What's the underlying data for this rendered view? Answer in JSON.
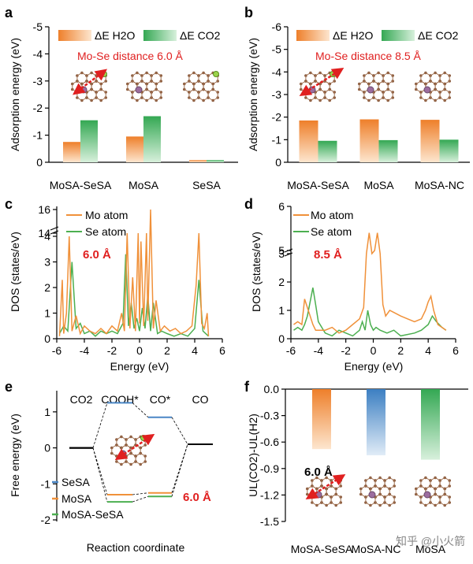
{
  "colors": {
    "orange": "#f0913a",
    "green": "#4caf50",
    "blue": "#4a86c5",
    "red": "#e02020",
    "ink": "#000000"
  },
  "labels": {
    "dE_H2O": "ΔE H2O",
    "dE_CO2": "ΔE CO2",
    "mo_atom": "Mo atom",
    "se_atom": "Se atom",
    "watermark": "知乎 @小火箭"
  },
  "chart_data": [
    {
      "panel": "a",
      "type": "bar",
      "title": "",
      "ylabel": "Adsorption energy (eV)",
      "ylim": [
        -5,
        0
      ],
      "yticks": [
        "-5",
        "-4",
        "-3",
        "-2",
        "-1",
        "0"
      ],
      "categories": [
        "MoSA-SeSA",
        "MoSA",
        "SeSA"
      ],
      "annotation": "Mo-Se distance 6.0 Å",
      "series": [
        {
          "name": "ΔE H2O",
          "values": [
            -0.75,
            -0.95,
            -0.08
          ]
        },
        {
          "name": "ΔE CO2",
          "values": [
            -1.55,
            -1.7,
            -0.08
          ]
        }
      ]
    },
    {
      "panel": "b",
      "type": "bar",
      "ylabel": "Adsorption energy (eV)",
      "ylim": [
        -6,
        0
      ],
      "yticks": [
        "-6",
        "-5",
        "-4",
        "-3",
        "-2",
        "-1",
        "0"
      ],
      "categories": [
        "MoSA-SeSA",
        "MoSA",
        "MoSA-NC"
      ],
      "annotation": "Mo-Se distance 8.5 Å",
      "series": [
        {
          "name": "ΔE H2O",
          "values": [
            -1.85,
            -1.9,
            -1.88
          ]
        },
        {
          "name": "ΔE CO2",
          "values": [
            -0.95,
            -0.98,
            -1.0
          ]
        }
      ]
    },
    {
      "panel": "c",
      "type": "line",
      "xlabel": "Energy (eV)",
      "ylabel": "DOS (states/eV)",
      "xlim": [
        -6,
        6
      ],
      "xticks": [
        "-6",
        "-4",
        "-2",
        "0",
        "2",
        "4",
        "6"
      ],
      "yticks": [
        "0",
        "1",
        "2",
        "3",
        "4",
        "14",
        "16"
      ],
      "annotation": "6.0 Å",
      "series": [
        {
          "name": "Mo atom",
          "x": [
            -5.8,
            -5.6,
            -5.5,
            -5.3,
            -5.1,
            -4.9,
            -4.6,
            -4.3,
            -4.0,
            -3.6,
            -3.2,
            -2.8,
            -2.4,
            -2.0,
            -1.6,
            -1.3,
            -1.1,
            -0.9,
            -0.7,
            -0.5,
            -0.3,
            -0.1,
            0.0,
            0.1,
            0.3,
            0.5,
            0.6,
            0.8,
            1.0,
            1.2,
            1.5,
            1.8,
            2.2,
            2.6,
            3.0,
            3.4,
            3.8,
            4.1,
            4.3,
            4.5,
            4.7,
            4.9,
            5.0
          ],
          "y": [
            0.1,
            2.3,
            0.2,
            1.0,
            4.0,
            0.3,
            0.9,
            0.2,
            0.5,
            0.3,
            0.2,
            0.4,
            0.2,
            0.5,
            0.3,
            1.0,
            0.3,
            4.3,
            0.4,
            2.4,
            0.3,
            4.1,
            0.6,
            3.8,
            0.5,
            4.2,
            0.7,
            16.5,
            0.4,
            1.5,
            0.3,
            0.5,
            0.3,
            0.4,
            0.2,
            0.3,
            0.5,
            2.1,
            4.3,
            0.6,
            0.4,
            1.0,
            0.1
          ]
        },
        {
          "name": "Se atom",
          "x": [
            -5.8,
            -5.5,
            -5.2,
            -4.9,
            -4.6,
            -4.3,
            -4.0,
            -3.6,
            -3.2,
            -2.8,
            -2.4,
            -2.0,
            -1.6,
            -1.2,
            -1.0,
            -0.8,
            -0.6,
            -0.4,
            -0.2,
            0.0,
            0.2,
            0.4,
            0.6,
            0.8,
            1.0,
            1.3,
            1.6,
            2.0,
            2.5,
            3.0,
            3.5,
            4.0,
            4.3,
            4.6,
            5.0
          ],
          "y": [
            0.2,
            0.5,
            0.3,
            3.0,
            0.4,
            0.6,
            0.2,
            0.3,
            0.1,
            0.3,
            0.2,
            0.3,
            0.2,
            0.6,
            3.3,
            0.5,
            1.4,
            0.4,
            0.8,
            0.3,
            1.2,
            0.4,
            1.7,
            0.3,
            1.4,
            0.2,
            0.3,
            0.2,
            0.1,
            0.2,
            0.1,
            0.4,
            2.3,
            0.3,
            0.1
          ]
        }
      ]
    },
    {
      "panel": "d",
      "type": "line",
      "xlabel": "Energy (eV)",
      "ylabel": "DOS (states/eV)",
      "xlim": [
        -6,
        6
      ],
      "xticks": [
        "-6",
        "-4",
        "-2",
        "0",
        "2",
        "4",
        "6"
      ],
      "yticks": [
        "0",
        "1",
        "2",
        "3",
        "5",
        "6"
      ],
      "annotation": "8.5 Å",
      "series": [
        {
          "name": "Mo atom",
          "x": [
            -5.8,
            -5.5,
            -5.2,
            -5.0,
            -4.8,
            -4.6,
            -4.4,
            -4.2,
            -4.0,
            -3.5,
            -3.0,
            -2.5,
            -2.0,
            -1.5,
            -1.0,
            -0.7,
            -0.5,
            -0.3,
            -0.1,
            0.1,
            0.3,
            0.5,
            0.7,
            0.9,
            1.2,
            1.6,
            2.0,
            2.5,
            3.0,
            3.5,
            3.8,
            4.0,
            4.2,
            4.4,
            4.7,
            5.0,
            5.3
          ],
          "y": [
            0.5,
            0.6,
            0.5,
            1.4,
            1.1,
            0.8,
            0.5,
            0.3,
            0.3,
            0.3,
            0.4,
            0.2,
            0.3,
            0.5,
            0.7,
            1.1,
            3.0,
            5.4,
            3.0,
            4.8,
            5.4,
            3.0,
            1.2,
            0.8,
            1.0,
            0.9,
            0.8,
            0.7,
            0.6,
            0.7,
            1.0,
            1.3,
            1.5,
            1.0,
            0.5,
            0.4,
            0.3
          ]
        },
        {
          "name": "Se atom",
          "x": [
            -5.8,
            -5.5,
            -5.2,
            -5.0,
            -4.8,
            -4.6,
            -4.4,
            -4.2,
            -4.0,
            -3.5,
            -3.0,
            -2.5,
            -2.0,
            -1.5,
            -1.0,
            -0.8,
            -0.6,
            -0.4,
            -0.2,
            0.0,
            0.2,
            0.5,
            1.0,
            1.5,
            2.0,
            3.0,
            3.5,
            4.0,
            4.3,
            4.6,
            5.0,
            5.3
          ],
          "y": [
            0.3,
            0.4,
            0.3,
            0.5,
            0.8,
            1.3,
            1.8,
            1.2,
            0.6,
            0.2,
            0.1,
            0.3,
            0.2,
            0.1,
            0.3,
            0.6,
            0.3,
            1.0,
            0.5,
            0.3,
            0.4,
            0.3,
            0.2,
            0.3,
            0.1,
            0.2,
            0.3,
            0.5,
            0.8,
            0.6,
            0.4,
            0.3
          ]
        }
      ]
    },
    {
      "panel": "e",
      "type": "line",
      "xlabel": "Reaction coordinate",
      "ylabel": "Free energy (eV)",
      "ylim": [
        -2,
        1.5
      ],
      "yticks": [
        "-2",
        "-1",
        "0",
        "1"
      ],
      "steps": [
        "CO2",
        "COOH*",
        "CO*",
        "CO"
      ],
      "annotation": "6.0 Å",
      "series": [
        {
          "name": "SeSA",
          "values": [
            0,
            1.25,
            0.85,
            0.1
          ]
        },
        {
          "name": "MoSA",
          "values": [
            0,
            -1.3,
            -1.25,
            0.1
          ]
        },
        {
          "name": "MoSA-SeSA",
          "values": [
            0,
            -1.5,
            -1.35,
            0.1
          ]
        }
      ]
    },
    {
      "panel": "f",
      "type": "bar",
      "ylabel": "UL(CO2)-UL(H2)",
      "ylim": [
        -1.5,
        0
      ],
      "yticks": [
        "0.0",
        "-0.3",
        "-0.6",
        "-0.9",
        "-1.2",
        "-1.5"
      ],
      "categories": [
        "MoSA-SeSA",
        "MoSA-NC",
        "MoSA"
      ],
      "annotation": "6.0 Å",
      "values": [
        -0.68,
        -0.75,
        -0.8
      ]
    }
  ]
}
